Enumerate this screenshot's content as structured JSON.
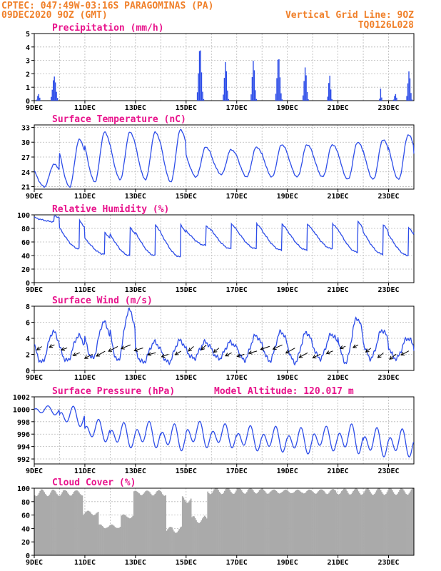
{
  "header": {
    "line1": "CPTEC:   047:49W-03:16S  PARAGOMINAS (PA)",
    "line2": "09DEC2020 9OZ (GMT)",
    "grid_line": "Vertical Grid Line: 9OZ",
    "code": "TQ0126L028"
  },
  "chart_data": [
    {
      "type": "bar",
      "title": "Precipitation (mm/h)",
      "x_days": [
        9,
        24
      ],
      "x_ticks": [
        "9DEC",
        "11DEC",
        "13DEC",
        "15DEC",
        "17DEC",
        "19DEC",
        "21DEC",
        "23DEC"
      ],
      "ylim": [
        0,
        5
      ],
      "y_ticks": [
        0,
        1,
        2,
        3,
        4,
        5
      ],
      "events": [
        {
          "day": 9.2,
          "max": 0.5,
          "width": 0.25
        },
        {
          "day": 9.85,
          "max": 1.8,
          "width": 0.4
        },
        {
          "day": 15.6,
          "max": 4.0,
          "width": 0.35
        },
        {
          "day": 16.6,
          "max": 2.9,
          "width": 0.3
        },
        {
          "day": 17.7,
          "max": 3.0,
          "width": 0.3
        },
        {
          "day": 18.7,
          "max": 3.3,
          "width": 0.35
        },
        {
          "day": 19.75,
          "max": 2.5,
          "width": 0.3
        },
        {
          "day": 20.7,
          "max": 1.9,
          "width": 0.25
        },
        {
          "day": 22.7,
          "max": 0.9,
          "width": 0.15
        },
        {
          "day": 23.3,
          "max": 0.5,
          "width": 0.25
        },
        {
          "day": 23.85,
          "max": 2.2,
          "width": 0.3
        }
      ]
    },
    {
      "type": "line",
      "title": "Surface Temperature (nC)",
      "ylim": [
        20.5,
        33.5
      ],
      "y_ticks": [
        21,
        24,
        27,
        30,
        33
      ],
      "daily_max": [
        25.5,
        30.5,
        32.0,
        32.0,
        32.0,
        32.5,
        29.0,
        28.5,
        29.0,
        29.5,
        29.5,
        29.5,
        30.0,
        30.5,
        31.5,
        30.0
      ],
      "daily_min": [
        21.0,
        21.0,
        22.0,
        22.5,
        22.5,
        22.0,
        23.0,
        23.5,
        23.0,
        23.0,
        23.0,
        23.0,
        22.5,
        22.5,
        22.5,
        22.0
      ]
    },
    {
      "type": "line",
      "title": "Relative Humidity (%)",
      "ylim": [
        0,
        100
      ],
      "y_ticks": [
        0,
        20,
        40,
        60,
        80,
        100
      ],
      "daily_max": [
        100,
        100,
        80,
        90,
        95,
        95,
        90,
        95,
        95,
        95,
        95,
        95,
        100,
        95,
        90,
        95
      ],
      "daily_min": [
        90,
        50,
        42,
        40,
        40,
        38,
        55,
        50,
        50,
        48,
        48,
        50,
        45,
        42,
        40,
        42
      ]
    },
    {
      "type": "line",
      "title": "Surface Wind (m/s)",
      "ylim": [
        0,
        8
      ],
      "y_ticks": [
        0,
        2,
        4,
        6,
        8
      ],
      "daily_max": [
        4.8,
        4.3,
        6.0,
        7.5,
        3.5,
        3.7,
        3.5,
        3.5,
        4.3,
        4.8,
        4.7,
        4.5,
        6.5,
        5.0,
        4.0,
        3.5
      ],
      "daily_min": [
        1.0,
        1.2,
        1.5,
        1.2,
        1.0,
        1.0,
        1.5,
        1.5,
        1.3,
        1.2,
        1.0,
        1.5,
        1.0,
        1.5,
        1.5,
        1.5
      ],
      "arrows_direction": "from east-northeast"
    },
    {
      "type": "line",
      "title": "Surface Pressure (hPa)",
      "annotation": "Model Altitude: 120.017 m",
      "ylim": [
        991.2,
        1002
      ],
      "y_ticks": [
        992,
        994,
        996,
        998,
        1000,
        1002
      ],
      "daily_max": [
        1000.6,
        1000.6,
        998.5,
        998.0,
        998.2,
        997.8,
        998.2,
        997.8,
        997.5,
        997.4,
        997.2,
        997.4,
        997.8,
        997.2,
        997.0,
        996.8
      ],
      "daily_min": [
        999.0,
        997.0,
        994.5,
        993.5,
        993.5,
        993.0,
        993.5,
        993.5,
        993.0,
        992.8,
        992.5,
        993.0,
        992.5,
        992.0,
        992.0,
        991.5
      ]
    },
    {
      "type": "area",
      "title": "Cloud Cover (%)",
      "ylim": [
        0,
        100
      ],
      "y_ticks": [
        0,
        20,
        40,
        60,
        80,
        100
      ],
      "segments": [
        [
          9.0,
          10.9,
          95
        ],
        [
          10.9,
          11.5,
          65
        ],
        [
          11.5,
          12.4,
          45
        ],
        [
          12.4,
          12.9,
          60
        ],
        [
          12.9,
          14.2,
          95
        ],
        [
          14.2,
          14.8,
          40
        ],
        [
          14.8,
          15.2,
          85
        ],
        [
          15.2,
          15.8,
          55
        ],
        [
          15.8,
          18.0,
          98
        ],
        [
          18.0,
          24.0,
          97
        ]
      ]
    }
  ]
}
